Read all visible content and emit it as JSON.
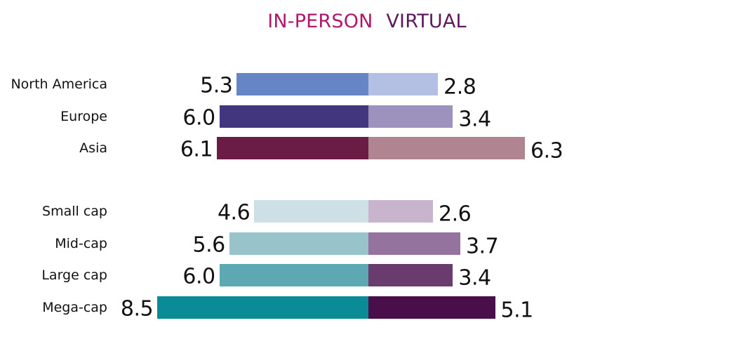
{
  "chart_data": {
    "type": "bar",
    "series": [
      {
        "name": "IN-PERSON",
        "color": "#b0186c"
      },
      {
        "name": "VIRTUAL",
        "color": "#5c1a5a"
      }
    ],
    "groups": [
      {
        "rows": [
          {
            "category": "North America",
            "in_person": 5.3,
            "virtual": 2.8,
            "in_person_color": "#6685c4",
            "virtual_color": "#b3bfe3"
          },
          {
            "category": "Europe",
            "in_person": 6.0,
            "virtual": 3.4,
            "in_person_color": "#42367e",
            "virtual_color": "#9d91bd"
          },
          {
            "category": "Asia",
            "in_person": 6.1,
            "virtual": 6.3,
            "in_person_color": "#6b1c45",
            "virtual_color": "#b08490"
          }
        ]
      },
      {
        "rows": [
          {
            "category": "Small cap",
            "in_person": 4.6,
            "virtual": 2.6,
            "in_person_color": "#cde0e6",
            "virtual_color": "#c8b4cd"
          },
          {
            "category": "Mid-cap",
            "in_person": 5.6,
            "virtual": 3.7,
            "in_person_color": "#98c3cb",
            "virtual_color": "#94749e"
          },
          {
            "category": "Large cap",
            "in_person": 6.0,
            "virtual": 3.4,
            "in_person_color": "#5ca9b4",
            "virtual_color": "#6a3b6e"
          },
          {
            "category": "Mega-cap",
            "in_person": 8.5,
            "virtual": 5.1,
            "in_person_color": "#0a8c96",
            "virtual_color": "#4a0f4a"
          }
        ]
      }
    ],
    "legend_position": "top-center",
    "grid": false
  }
}
